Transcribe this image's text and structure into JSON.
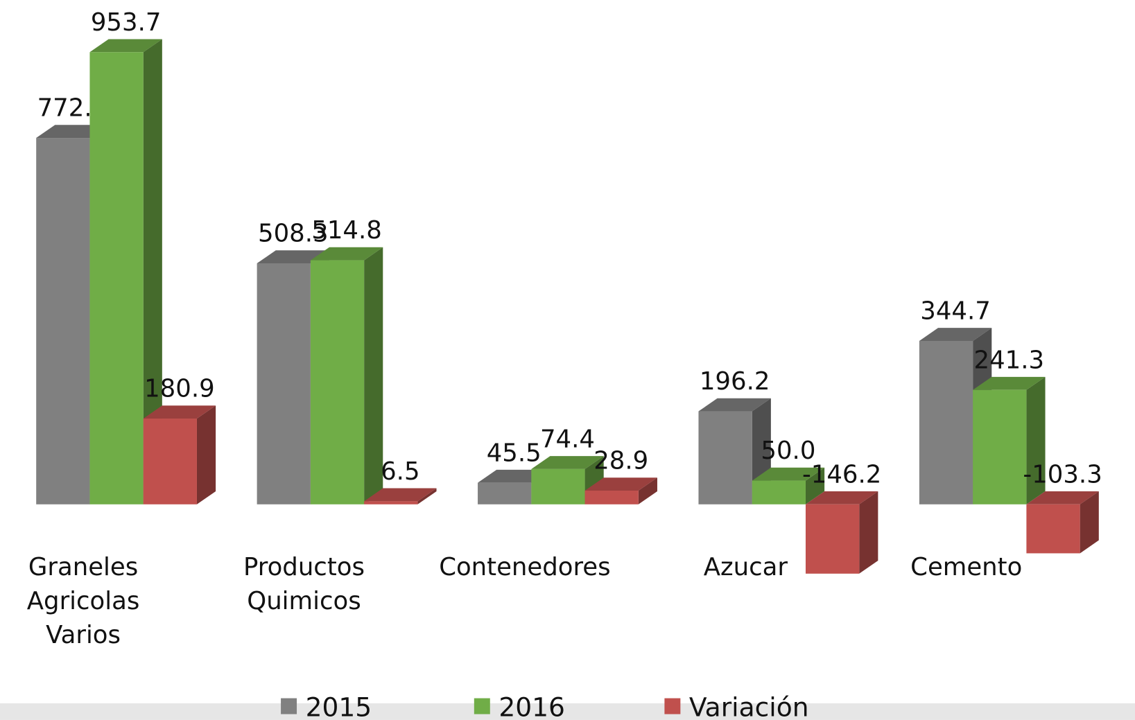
{
  "chart_data": {
    "type": "bar3d",
    "categories": [
      "Graneles Agricolas Varios",
      "Productos Quimicos",
      "Contenedores",
      "Azucar",
      "Cemento"
    ],
    "series": [
      {
        "name": "2015",
        "color": "#808080",
        "values": [
          772.8,
          508.3,
          45.5,
          196.2,
          344.7
        ],
        "value_labels": [
          "772.8",
          "508.3",
          "45.5",
          "196.2",
          "344.7"
        ]
      },
      {
        "name": "2016",
        "color": "#70ad47",
        "values": [
          953.7,
          514.8,
          74.4,
          50,
          241.3
        ],
        "value_labels": [
          "953.7",
          "514.8",
          "74.4",
          "50.0",
          "241.3"
        ]
      },
      {
        "name": "Variación",
        "color": "#c0504d",
        "values": [
          180.9,
          6.5,
          28.9,
          -146.2,
          -103.3
        ],
        "value_labels": [
          "180.9",
          "6.5",
          "28.9",
          "-146.2",
          "-103.3"
        ]
      }
    ],
    "legend": "bottom"
  }
}
